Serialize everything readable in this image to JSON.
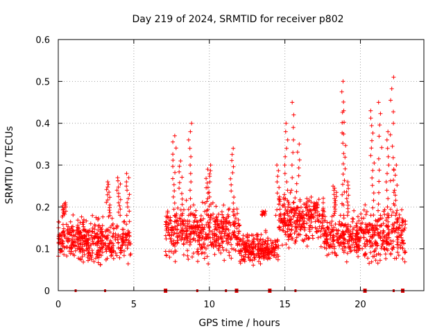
{
  "chart_data": {
    "type": "scatter",
    "title": "Day 219 of 2024, SRMTID for receiver p802",
    "xlabel": "GPS time / hours",
    "ylabel": "SRMTID / TECUs",
    "xlim": [
      0,
      24.2
    ],
    "ylim": [
      0,
      0.6
    ],
    "xticks": [
      0,
      5,
      10,
      15,
      20
    ],
    "yticks": [
      0,
      0.1,
      0.2,
      0.3,
      0.4,
      0.5,
      0.6
    ],
    "xtick_labels": [
      "0",
      "5",
      "10",
      "15",
      "20"
    ],
    "ytick_labels": [
      "0",
      "0.1",
      "0.2",
      "0.3",
      "0.4",
      "0.5",
      "0.6"
    ],
    "grid": true,
    "marker": "+",
    "color": "#ff0000",
    "segments": [
      {
        "x0": 0.0,
        "x1": 4.8,
        "base": 0.12,
        "spread": 0.05
      },
      {
        "x0": 7.1,
        "x1": 12.0,
        "base": 0.14,
        "spread": 0.06
      },
      {
        "x0": 12.0,
        "x1": 14.6,
        "base": 0.1,
        "spread": 0.035
      },
      {
        "x0": 14.6,
        "x1": 17.6,
        "base": 0.17,
        "spread": 0.06
      },
      {
        "x0": 17.6,
        "x1": 20.2,
        "base": 0.13,
        "spread": 0.05
      },
      {
        "x0": 20.2,
        "x1": 23.0,
        "base": 0.13,
        "spread": 0.06
      }
    ],
    "spikes": [
      {
        "x": 0.4,
        "y": 0.21
      },
      {
        "x": 3.3,
        "y": 0.26
      },
      {
        "x": 4.0,
        "y": 0.27
      },
      {
        "x": 4.6,
        "y": 0.28
      },
      {
        "x": 7.7,
        "y": 0.37
      },
      {
        "x": 8.1,
        "y": 0.31
      },
      {
        "x": 8.7,
        "y": 0.4
      },
      {
        "x": 9.9,
        "y": 0.29
      },
      {
        "x": 10.0,
        "y": 0.3
      },
      {
        "x": 11.5,
        "y": 0.34
      },
      {
        "x": 13.6,
        "y": 0.19
      },
      {
        "x": 14.5,
        "y": 0.3
      },
      {
        "x": 15.1,
        "y": 0.4
      },
      {
        "x": 15.5,
        "y": 0.45
      },
      {
        "x": 15.9,
        "y": 0.35
      },
      {
        "x": 16.5,
        "y": 0.22
      },
      {
        "x": 18.3,
        "y": 0.25
      },
      {
        "x": 18.8,
        "y": 0.5
      },
      {
        "x": 18.9,
        "y": 0.43
      },
      {
        "x": 19.2,
        "y": 0.26
      },
      {
        "x": 20.8,
        "y": 0.43
      },
      {
        "x": 21.3,
        "y": 0.45
      },
      {
        "x": 21.8,
        "y": 0.38
      },
      {
        "x": 22.1,
        "y": 0.51
      },
      {
        "x": 22.3,
        "y": 0.3
      }
    ],
    "axis_marks_small": [
      1.15,
      3.1,
      9.2,
      11.1,
      15.7,
      22.2
    ],
    "axis_marks_large": [
      7.1,
      11.8,
      14.0,
      20.3,
      22.8
    ]
  }
}
